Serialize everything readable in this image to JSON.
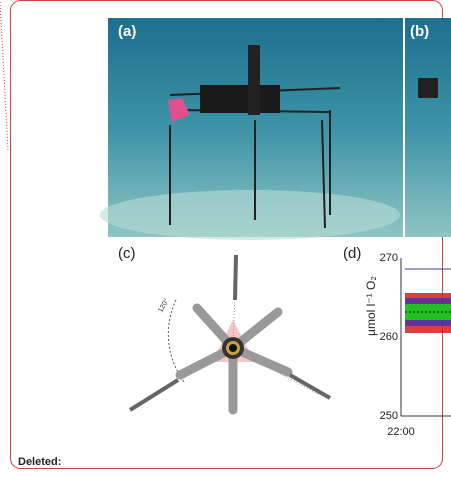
{
  "figure": {
    "panels": [
      {
        "label": "(a)"
      },
      {
        "label": "(b)"
      },
      {
        "label": "(c)",
        "angle_label": "120°"
      },
      {
        "label": "(d)",
        "y_axis_label": "µmol l⁻¹ O₂",
        "yticks": [
          "270",
          "260",
          "250"
        ],
        "xticks": [
          "22:00"
        ]
      }
    ]
  },
  "comment": {
    "label": "Deleted:"
  }
}
